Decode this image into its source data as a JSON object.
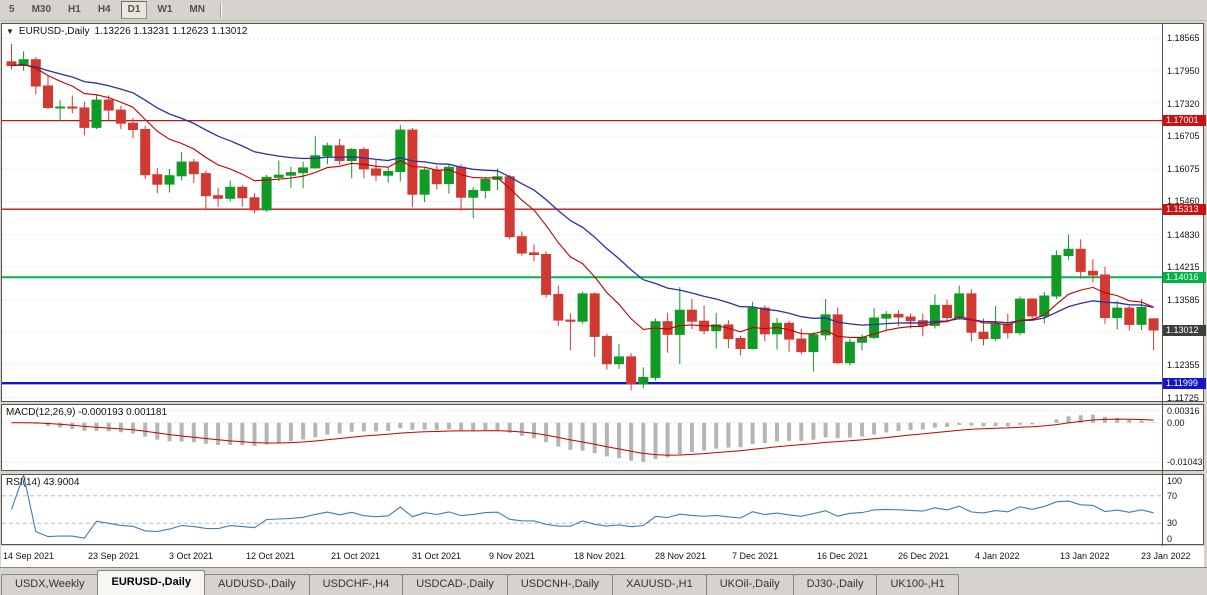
{
  "toolbar": {
    "timeframes": [
      {
        "label": "5",
        "active": false
      },
      {
        "label": "M30",
        "active": false
      },
      {
        "label": "H1",
        "active": false
      },
      {
        "label": "H4",
        "active": false
      },
      {
        "label": "D1",
        "active": true
      },
      {
        "label": "W1",
        "active": false
      },
      {
        "label": "MN",
        "active": false
      }
    ]
  },
  "chart": {
    "title": "EURUSD-,Daily",
    "ohlc_text": "1.13226 1.13231 1.12623 1.13012",
    "dropdown_icon": "▼",
    "price_axis": [
      "1.18565",
      "1.17950",
      "1.17320",
      "1.16705",
      "1.16075",
      "1.15460",
      "1.14830",
      "1.14215",
      "1.13585",
      "1.12970",
      "1.12355",
      "1.11725"
    ],
    "levels": [
      {
        "label": "1.17001",
        "value": 1.17001,
        "color": "#cc1111",
        "width": 1.3
      },
      {
        "label": "1.15313",
        "value": 1.15313,
        "color": "#cc1111",
        "width": 1.3
      },
      {
        "label": "1.14016",
        "value": 1.14016,
        "color": "#00b44a",
        "width": 2
      },
      {
        "label": "1.11999",
        "value": 1.11999,
        "color": "#1414cc",
        "width": 2.4
      }
    ],
    "current_price": {
      "label": "1.13012",
      "value": 1.13012,
      "bg": "#3f3f3f"
    },
    "colors": {
      "up": "#119a26",
      "down": "#d03a32",
      "ma_fast": "#c40000",
      "ma_slow": "#2734a0",
      "grid": "#d9d9d9"
    }
  },
  "macd": {
    "label": "MACD(12,26,9) -0.000193 0.001181",
    "axis": [
      {
        "label": "0.00316",
        "value": 0.00316
      },
      {
        "label": "0.00",
        "value": 0
      },
      {
        "label": "-0.01043",
        "value": -0.01043
      }
    ],
    "colors": {
      "histogram": "#b5b5b5",
      "signal": "#c40000"
    }
  },
  "rsi": {
    "label": "RSI(14) 43.9004",
    "axis": [
      {
        "label": "100",
        "value": 100
      },
      {
        "label": "70",
        "value": 70
      },
      {
        "label": "30",
        "value": 30
      },
      {
        "label": "0",
        "value": 0
      }
    ],
    "levels": [
      70,
      30
    ],
    "color": "#3f7cb8"
  },
  "dates": [
    {
      "label": "14 Sep 2021",
      "i": 0
    },
    {
      "label": "23 Sep 2021",
      "i": 7
    },
    {
      "label": "3 Oct 2021",
      "i": 13.7
    },
    {
      "label": "12 Oct 2021",
      "i": 20
    },
    {
      "label": "21 Oct 2021",
      "i": 27
    },
    {
      "label": "31 Oct 2021",
      "i": 33.7
    },
    {
      "label": "9 Nov 2021",
      "i": 40
    },
    {
      "label": "18 Nov 2021",
      "i": 47
    },
    {
      "label": "28 Nov 2021",
      "i": 53.7
    },
    {
      "label": "7 Dec 2021",
      "i": 60
    },
    {
      "label": "16 Dec 2021",
      "i": 67
    },
    {
      "label": "26 Dec 2021",
      "i": 73.7
    },
    {
      "label": "4 Jan 2022",
      "i": 80
    },
    {
      "label": "13 Jan 2022",
      "i": 87
    },
    {
      "label": "23 Jan 2022",
      "i": 93.7
    }
  ],
  "tabs": [
    {
      "label": "USDX,Weekly",
      "active": false
    },
    {
      "label": "EURUSD-,Daily",
      "active": true
    },
    {
      "label": "AUDUSD-,Daily",
      "active": false
    },
    {
      "label": "USDCHF-,H4",
      "active": false
    },
    {
      "label": "USDCAD-,Daily",
      "active": false
    },
    {
      "label": "USDCNH-,Daily",
      "active": false
    },
    {
      "label": "XAUUSD-,H1",
      "active": false
    },
    {
      "label": "UKOil-,Daily",
      "active": false
    },
    {
      "label": "DJ30-,Daily",
      "active": false
    },
    {
      "label": "UK100-,H1",
      "active": false
    }
  ],
  "chart_data": {
    "type": "candlestick",
    "symbol": "EURUSD",
    "timeframe": "Daily",
    "y_range": [
      1.1166,
      1.1884
    ],
    "macd_range": [
      -0.0125,
      0.0047
    ],
    "rsi_range": [
      0,
      100
    ],
    "overlays": [
      {
        "name": "ma-fast",
        "period": 10,
        "color": "#c40000"
      },
      {
        "name": "ma-slow",
        "period": 21,
        "color": "#2734a0"
      }
    ],
    "macd_params": {
      "fast": 12,
      "slow": 26,
      "signal": 9
    },
    "rsi_params": {
      "period": 14
    },
    "candles": [
      [
        1.1812,
        1.1846,
        1.1798,
        1.1805
      ],
      [
        1.1805,
        1.1832,
        1.1795,
        1.1816
      ],
      [
        1.1816,
        1.1821,
        1.175,
        1.1766
      ],
      [
        1.1766,
        1.1785,
        1.1722,
        1.1725
      ],
      [
        1.1725,
        1.1739,
        1.17,
        1.1726
      ],
      [
        1.1726,
        1.1748,
        1.1714,
        1.1724
      ],
      [
        1.1724,
        1.1736,
        1.1672,
        1.1687
      ],
      [
        1.1687,
        1.175,
        1.1684,
        1.1739
      ],
      [
        1.1739,
        1.1748,
        1.1701,
        1.172
      ],
      [
        1.172,
        1.1728,
        1.1684,
        1.1695
      ],
      [
        1.1695,
        1.1705,
        1.1667,
        1.1683
      ],
      [
        1.1683,
        1.169,
        1.1589,
        1.1597
      ],
      [
        1.1597,
        1.161,
        1.1562,
        1.1579
      ],
      [
        1.1579,
        1.1608,
        1.1563,
        1.1595
      ],
      [
        1.1595,
        1.164,
        1.1586,
        1.1621
      ],
      [
        1.1621,
        1.1627,
        1.1581,
        1.1599
      ],
      [
        1.1599,
        1.1605,
        1.1529,
        1.1557
      ],
      [
        1.1557,
        1.1572,
        1.1536,
        1.1552
      ],
      [
        1.1552,
        1.1586,
        1.1546,
        1.1573
      ],
      [
        1.1573,
        1.1577,
        1.1536,
        1.1553
      ],
      [
        1.1553,
        1.1562,
        1.1524,
        1.153
      ],
      [
        1.153,
        1.1597,
        1.1526,
        1.1592
      ],
      [
        1.1592,
        1.1624,
        1.1585,
        1.1596
      ],
      [
        1.1596,
        1.1612,
        1.1572,
        1.1601
      ],
      [
        1.1601,
        1.1622,
        1.1571,
        1.161
      ],
      [
        1.161,
        1.167,
        1.1609,
        1.1633
      ],
      [
        1.1633,
        1.1658,
        1.1617,
        1.1652
      ],
      [
        1.1652,
        1.1665,
        1.1616,
        1.1624
      ],
      [
        1.1624,
        1.1648,
        1.159,
        1.1645
      ],
      [
        1.1645,
        1.165,
        1.159,
        1.1608
      ],
      [
        1.1608,
        1.1626,
        1.1585,
        1.1596
      ],
      [
        1.1596,
        1.1612,
        1.1582,
        1.1603
      ],
      [
        1.1603,
        1.1692,
        1.1584,
        1.1682
      ],
      [
        1.1682,
        1.1686,
        1.1535,
        1.156
      ],
      [
        1.156,
        1.161,
        1.1545,
        1.1606
      ],
      [
        1.1606,
        1.1614,
        1.1569,
        1.158
      ],
      [
        1.158,
        1.1616,
        1.1561,
        1.1611
      ],
      [
        1.1611,
        1.1617,
        1.1528,
        1.1554
      ],
      [
        1.1554,
        1.1574,
        1.1514,
        1.1567
      ],
      [
        1.1567,
        1.1593,
        1.1552,
        1.1588
      ],
      [
        1.1588,
        1.1609,
        1.1567,
        1.1593
      ],
      [
        1.1593,
        1.1597,
        1.1474,
        1.1479
      ],
      [
        1.1479,
        1.1489,
        1.1443,
        1.1448
      ],
      [
        1.1448,
        1.1464,
        1.1432,
        1.1445
      ],
      [
        1.1445,
        1.1451,
        1.1363,
        1.1369
      ],
      [
        1.1369,
        1.1386,
        1.1309,
        1.132
      ],
      [
        1.132,
        1.1333,
        1.1263,
        1.1318
      ],
      [
        1.1318,
        1.1374,
        1.1313,
        1.137
      ],
      [
        1.137,
        1.1373,
        1.125,
        1.1289
      ],
      [
        1.1289,
        1.1294,
        1.1226,
        1.1237
      ],
      [
        1.1237,
        1.1275,
        1.1227,
        1.125
      ],
      [
        1.125,
        1.1257,
        1.1186,
        1.1199
      ],
      [
        1.1199,
        1.123,
        1.119,
        1.1211
      ],
      [
        1.1211,
        1.1323,
        1.1205,
        1.1317
      ],
      [
        1.1317,
        1.1334,
        1.1258,
        1.1293
      ],
      [
        1.1293,
        1.1383,
        1.1236,
        1.1339
      ],
      [
        1.1339,
        1.136,
        1.1303,
        1.1318
      ],
      [
        1.1318,
        1.1348,
        1.1293,
        1.13
      ],
      [
        1.13,
        1.1334,
        1.1266,
        1.1311
      ],
      [
        1.1311,
        1.132,
        1.1267,
        1.1285
      ],
      [
        1.1285,
        1.129,
        1.1253,
        1.1266
      ],
      [
        1.1266,
        1.1355,
        1.1264,
        1.1343
      ],
      [
        1.1343,
        1.1348,
        1.128,
        1.1294
      ],
      [
        1.1294,
        1.1324,
        1.1264,
        1.1314
      ],
      [
        1.1314,
        1.1319,
        1.126,
        1.1284
      ],
      [
        1.1284,
        1.1303,
        1.1255,
        1.126
      ],
      [
        1.126,
        1.1297,
        1.1222,
        1.1292
      ],
      [
        1.1292,
        1.136,
        1.1282,
        1.133
      ],
      [
        1.133,
        1.1344,
        1.1236,
        1.1239
      ],
      [
        1.1239,
        1.1285,
        1.1234,
        1.1278
      ],
      [
        1.1278,
        1.1293,
        1.1262,
        1.1287
      ],
      [
        1.1287,
        1.1343,
        1.1284,
        1.1324
      ],
      [
        1.1324,
        1.1337,
        1.13,
        1.1331
      ],
      [
        1.1331,
        1.1339,
        1.1309,
        1.1326
      ],
      [
        1.1326,
        1.1333,
        1.1304,
        1.1319
      ],
      [
        1.1319,
        1.1332,
        1.1289,
        1.131
      ],
      [
        1.131,
        1.1369,
        1.1304,
        1.1348
      ],
      [
        1.1348,
        1.1359,
        1.1316,
        1.1325
      ],
      [
        1.1325,
        1.1386,
        1.1321,
        1.137
      ],
      [
        1.137,
        1.1379,
        1.1279,
        1.1297
      ],
      [
        1.1297,
        1.1323,
        1.1272,
        1.1285
      ],
      [
        1.1285,
        1.1347,
        1.128,
        1.1312
      ],
      [
        1.1312,
        1.1332,
        1.1285,
        1.1296
      ],
      [
        1.1296,
        1.1365,
        1.1291,
        1.136
      ],
      [
        1.136,
        1.1362,
        1.1322,
        1.1328
      ],
      [
        1.1328,
        1.1374,
        1.1314,
        1.1366
      ],
      [
        1.1366,
        1.1453,
        1.136,
        1.1443
      ],
      [
        1.1443,
        1.1483,
        1.1435,
        1.1455
      ],
      [
        1.1455,
        1.1474,
        1.1399,
        1.1413
      ],
      [
        1.1413,
        1.1436,
        1.1392,
        1.1406
      ],
      [
        1.1406,
        1.1422,
        1.1313,
        1.1325
      ],
      [
        1.1325,
        1.1357,
        1.1302,
        1.1343
      ],
      [
        1.1343,
        1.1347,
        1.13,
        1.1312
      ],
      [
        1.1312,
        1.136,
        1.1301,
        1.1344
      ],
      [
        1.13226,
        1.13231,
        1.12623,
        1.13012
      ]
    ]
  }
}
